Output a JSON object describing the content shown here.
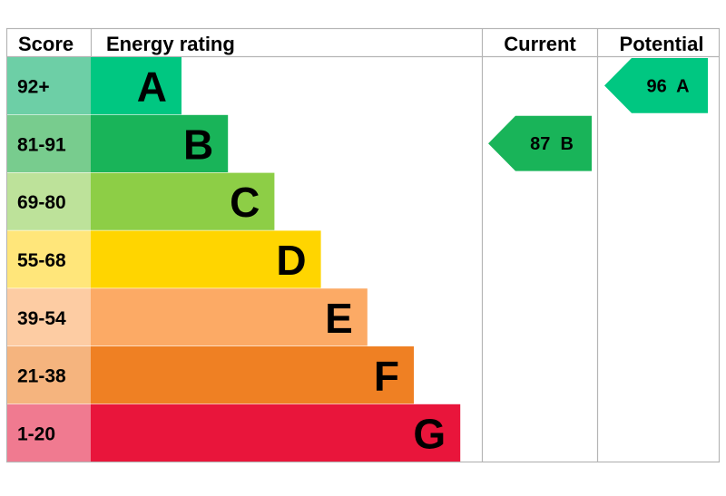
{
  "chart_data": {
    "type": "bar",
    "headers": {
      "score": "Score",
      "rating": "Energy rating",
      "current": "Current",
      "potential": "Potential"
    },
    "bands": [
      {
        "range": "92+",
        "letter": "A",
        "color": "#00c781",
        "score_color": "#6dcfa6",
        "level": 1
      },
      {
        "range": "81-91",
        "letter": "B",
        "color": "#19b459",
        "score_color": "#78cc8e",
        "level": 2
      },
      {
        "range": "69-80",
        "letter": "C",
        "color": "#8dce46",
        "score_color": "#bde29a",
        "level": 3
      },
      {
        "range": "55-68",
        "letter": "D",
        "color": "#ffd500",
        "score_color": "#ffe67a",
        "level": 4
      },
      {
        "range": "39-54",
        "letter": "E",
        "color": "#fcaa65",
        "score_color": "#fdcca3",
        "level": 5
      },
      {
        "range": "21-38",
        "letter": "F",
        "color": "#ef8023",
        "score_color": "#f5b47e",
        "level": 6
      },
      {
        "range": "1-20",
        "letter": "G",
        "color": "#e9153b",
        "score_color": "#f07a90",
        "level": 7
      }
    ],
    "current": {
      "value": 87,
      "letter": "B",
      "text": "87  B",
      "color": "#19b459"
    },
    "potential": {
      "value": 96,
      "letter": "A",
      "text": "96  A",
      "color": "#00c781"
    }
  }
}
